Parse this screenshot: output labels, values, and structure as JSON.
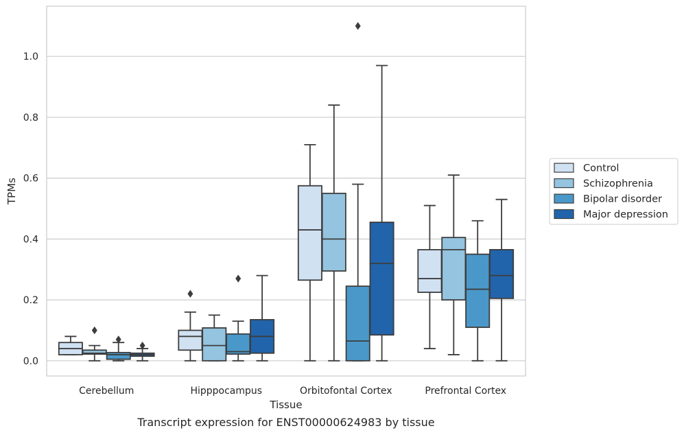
{
  "chart_data": {
    "type": "boxplot",
    "title": "",
    "caption": "Transcript expression for ENST00000624983 by tissue",
    "xlabel": "Tissue",
    "ylabel": "TPMs",
    "ylim": [
      -0.05,
      1.165
    ],
    "yticks": [
      0.0,
      0.2,
      0.4,
      0.6,
      0.8,
      1.0
    ],
    "ytick_labels": [
      "0.0",
      "0.2",
      "0.4",
      "0.6",
      "0.8",
      "1.0"
    ],
    "grid": "horizontal",
    "legend_position": "right",
    "categories": [
      "Cerebellum",
      "Hipppocampus",
      "Orbitofontal Cortex",
      "Prefrontal Cortex"
    ],
    "series": [
      {
        "name": "Control",
        "color": "#d0e1f2",
        "boxes": [
          {
            "whislo": 0.02,
            "q1": 0.02,
            "med": 0.04,
            "q3": 0.06,
            "whishi": 0.08,
            "fliers": []
          },
          {
            "whislo": 0.0,
            "q1": 0.035,
            "med": 0.08,
            "q3": 0.1,
            "whishi": 0.16,
            "fliers": [
              0.22
            ]
          },
          {
            "whislo": 0.0,
            "q1": 0.265,
            "med": 0.43,
            "q3": 0.575,
            "whishi": 0.71,
            "fliers": []
          },
          {
            "whislo": 0.04,
            "q1": 0.225,
            "med": 0.27,
            "q3": 0.365,
            "whishi": 0.51,
            "fliers": []
          }
        ]
      },
      {
        "name": "Schizophrenia",
        "color": "#94c4df",
        "boxes": [
          {
            "whislo": 0.0,
            "q1": 0.022,
            "med": 0.025,
            "q3": 0.035,
            "whishi": 0.05,
            "fliers": [
              0.1
            ]
          },
          {
            "whislo": 0.0,
            "q1": 0.0,
            "med": 0.05,
            "q3": 0.108,
            "whishi": 0.15,
            "fliers": []
          },
          {
            "whislo": 0.0,
            "q1": 0.295,
            "med": 0.4,
            "q3": 0.55,
            "whishi": 0.84,
            "fliers": []
          },
          {
            "whislo": 0.02,
            "q1": 0.2,
            "med": 0.365,
            "q3": 0.405,
            "whishi": 0.61,
            "fliers": []
          }
        ]
      },
      {
        "name": "Bipolar disorder",
        "color": "#4a98c9",
        "boxes": [
          {
            "whislo": 0.0,
            "q1": 0.005,
            "med": 0.02,
            "q3": 0.027,
            "whishi": 0.06,
            "fliers": [
              0.07
            ]
          },
          {
            "whislo": 0.0,
            "q1": 0.022,
            "med": 0.03,
            "q3": 0.088,
            "whishi": 0.13,
            "fliers": [
              0.27
            ]
          },
          {
            "whislo": 0.0,
            "q1": 0.0,
            "med": 0.065,
            "q3": 0.245,
            "whishi": 0.58,
            "fliers": [
              1.1
            ]
          },
          {
            "whislo": 0.0,
            "q1": 0.11,
            "med": 0.235,
            "q3": 0.35,
            "whishi": 0.46,
            "fliers": []
          }
        ]
      },
      {
        "name": "Major depression",
        "color": "#2164ab",
        "boxes": [
          {
            "whislo": 0.0,
            "q1": 0.015,
            "med": 0.02,
            "q3": 0.025,
            "whishi": 0.04,
            "fliers": [
              0.05
            ]
          },
          {
            "whislo": 0.0,
            "q1": 0.025,
            "med": 0.08,
            "q3": 0.135,
            "whishi": 0.28,
            "fliers": []
          },
          {
            "whislo": 0.0,
            "q1": 0.085,
            "med": 0.32,
            "q3": 0.455,
            "whishi": 0.97,
            "fliers": []
          },
          {
            "whislo": 0.0,
            "q1": 0.205,
            "med": 0.28,
            "q3": 0.365,
            "whishi": 0.53,
            "fliers": []
          }
        ]
      }
    ]
  }
}
